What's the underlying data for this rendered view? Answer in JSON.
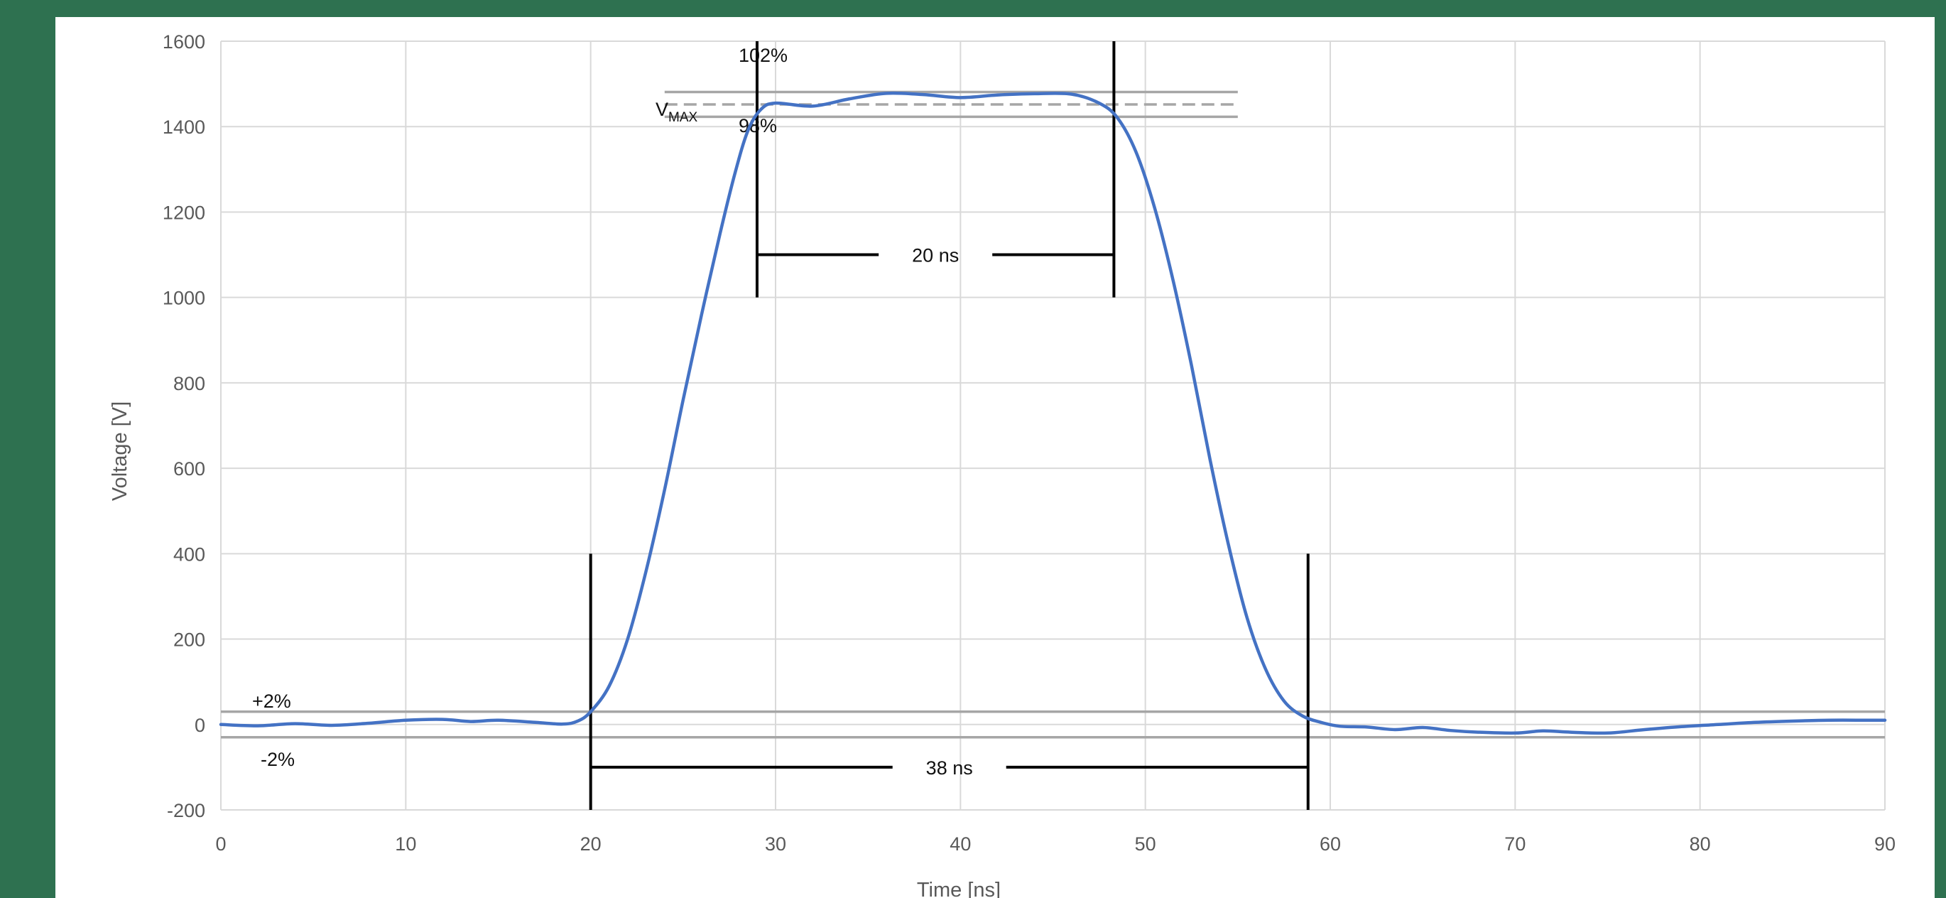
{
  "chart_data": {
    "type": "line",
    "title": "",
    "xlabel": "Time [ns]",
    "ylabel": "Voltage [V]",
    "xlim": [
      0,
      90
    ],
    "ylim": [
      -200,
      1600
    ],
    "grid": true,
    "x_ticks": [
      "0",
      "10",
      "20",
      "30",
      "40",
      "50",
      "60",
      "70",
      "80",
      "90"
    ],
    "y_ticks": [
      "-200",
      "0",
      "200",
      "400",
      "600",
      "800",
      "1000",
      "1200",
      "1400",
      "1600"
    ],
    "series": [
      {
        "color": "#4472c4",
        "points": [
          [
            0,
            0
          ],
          [
            2,
            -3
          ],
          [
            4,
            2
          ],
          [
            6,
            -2
          ],
          [
            8,
            3
          ],
          [
            10,
            10
          ],
          [
            12,
            12
          ],
          [
            13.5,
            7
          ],
          [
            15,
            10
          ],
          [
            17,
            5
          ],
          [
            18.5,
            1
          ],
          [
            19.3,
            8
          ],
          [
            20,
            30
          ],
          [
            21,
            90
          ],
          [
            22,
            200
          ],
          [
            23,
            360
          ],
          [
            24,
            550
          ],
          [
            25,
            760
          ],
          [
            26,
            960
          ],
          [
            27,
            1150
          ],
          [
            27.8,
            1290
          ],
          [
            28.5,
            1390
          ],
          [
            29.2,
            1440
          ],
          [
            30,
            1455
          ],
          [
            32,
            1448
          ],
          [
            34,
            1465
          ],
          [
            36,
            1478
          ],
          [
            38,
            1475
          ],
          [
            40,
            1468
          ],
          [
            42,
            1474
          ],
          [
            44,
            1477
          ],
          [
            46,
            1476
          ],
          [
            47.5,
            1455
          ],
          [
            48.5,
            1420
          ],
          [
            49.5,
            1340
          ],
          [
            50.5,
            1210
          ],
          [
            51.5,
            1040
          ],
          [
            52.5,
            840
          ],
          [
            53.5,
            620
          ],
          [
            54.5,
            420
          ],
          [
            55.5,
            250
          ],
          [
            56.5,
            130
          ],
          [
            57.5,
            55
          ],
          [
            58.5,
            20
          ],
          [
            59.5,
            5
          ],
          [
            60.5,
            -4
          ],
          [
            62,
            -6
          ],
          [
            63.5,
            -12
          ],
          [
            65,
            -7
          ],
          [
            66.5,
            -14
          ],
          [
            68,
            -18
          ],
          [
            70,
            -20
          ],
          [
            71.5,
            -15
          ],
          [
            73,
            -18
          ],
          [
            75,
            -20
          ],
          [
            77,
            -12
          ],
          [
            79,
            -5
          ],
          [
            81,
            0
          ],
          [
            83,
            5
          ],
          [
            85,
            8
          ],
          [
            87,
            10
          ],
          [
            89,
            10
          ],
          [
            90,
            10
          ]
        ]
      }
    ],
    "reference_lines": [
      {
        "y": 30,
        "x_range": [
          0,
          90
        ],
        "style": "solid",
        "label": "+2%"
      },
      {
        "y": -30,
        "x_range": [
          0,
          90
        ],
        "style": "solid",
        "label": "-2%"
      },
      {
        "y": 1481,
        "x_range": [
          24,
          55
        ],
        "style": "solid",
        "label": "102%"
      },
      {
        "y": 1452,
        "x_range": [
          24,
          55
        ],
        "style": "dashed",
        "label": "VMAX"
      },
      {
        "y": 1423,
        "x_range": [
          24,
          55
        ],
        "style": "solid",
        "label": "98%"
      }
    ],
    "markers": [
      {
        "x": 20,
        "y_range": [
          -200,
          400
        ]
      },
      {
        "x": 58.8,
        "y_range": [
          -200,
          400
        ]
      },
      {
        "x": 29,
        "y_range": [
          1000,
          1600
        ]
      },
      {
        "x": 48.3,
        "y_range": [
          1000,
          1600
        ]
      }
    ],
    "durations": [
      {
        "label": "20 ns",
        "x_from": 29,
        "x_to": 48.3,
        "y": 1100
      },
      {
        "label": "38 ns",
        "x_from": 20,
        "x_to": 58.8,
        "y": -100
      }
    ],
    "annotations": {
      "vmax_main": "V",
      "vmax_sub": "MAX"
    }
  }
}
